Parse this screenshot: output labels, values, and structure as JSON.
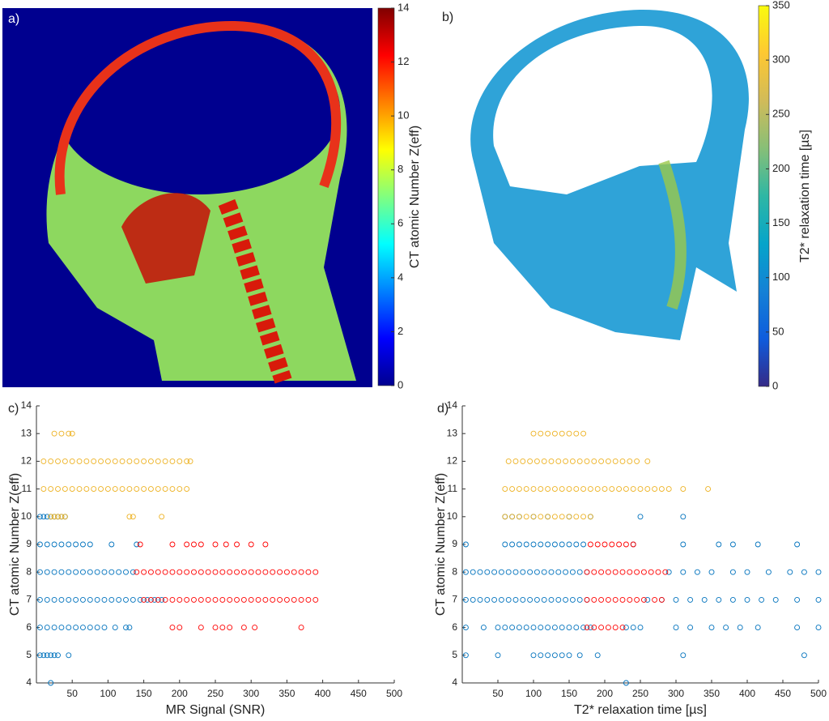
{
  "chart_data": [
    {
      "type": "image",
      "label": "a)",
      "colormap": "jet",
      "clim": [
        0,
        14
      ],
      "cticks": [
        0,
        2,
        4,
        6,
        8,
        10,
        12,
        14
      ],
      "clabel": "CT atomic Number Z(eff)"
    },
    {
      "type": "image",
      "label": "b)",
      "colormap": "parula",
      "clim": [
        0,
        350
      ],
      "cticks": [
        0,
        50,
        100,
        150,
        200,
        250,
        300,
        350
      ],
      "clabel": "T2* relaxation time [µs]"
    },
    {
      "type": "scatter",
      "label": "c)",
      "xlabel": "MR Signal (SNR)",
      "ylabel": "CT atomic Number Z(eff)",
      "xlim": [
        0,
        500
      ],
      "ylim": [
        4,
        14
      ],
      "xticks": [
        50,
        100,
        150,
        200,
        250,
        300,
        350,
        400,
        450,
        500
      ],
      "yticks": [
        4,
        5,
        6,
        7,
        8,
        9,
        10,
        11,
        12,
        13,
        14
      ],
      "series": [
        {
          "color": "#0072bd",
          "rows": [
            {
              "y": 4,
              "x": [
                20
              ]
            },
            {
              "y": 5,
              "x": [
                5,
                10,
                15,
                20,
                25,
                30,
                45
              ]
            },
            {
              "y": 6,
              "x": [
                5,
                15,
                25,
                35,
                45,
                55,
                65,
                75,
                85,
                95,
                110,
                125,
                130
              ]
            },
            {
              "y": 7,
              "x": [
                5,
                15,
                25,
                35,
                45,
                55,
                65,
                75,
                85,
                95,
                105,
                115,
                125,
                135,
                145,
                155,
                165,
                175
              ]
            },
            {
              "y": 8,
              "x": [
                5,
                15,
                25,
                35,
                45,
                55,
                65,
                75,
                85,
                95,
                105,
                115,
                125,
                135
              ]
            },
            {
              "y": 9,
              "x": [
                5,
                15,
                25,
                35,
                45,
                55,
                65,
                75,
                105,
                140
              ]
            },
            {
              "y": 10,
              "x": [
                5,
                10,
                15,
                20,
                25,
                30,
                35,
                40
              ]
            }
          ]
        },
        {
          "color": "#ff0000",
          "rows": [
            {
              "y": 6,
              "x": [
                190,
                200,
                230,
                250,
                260,
                270,
                290,
                305,
                370
              ]
            },
            {
              "y": 7,
              "x": [
                150,
                160,
                170,
                180,
                190,
                200,
                210,
                220,
                230,
                240,
                250,
                260,
                270,
                280,
                290,
                300,
                310,
                320,
                330,
                340,
                350,
                360,
                370,
                380,
                390
              ]
            },
            {
              "y": 8,
              "x": [
                140,
                150,
                160,
                170,
                180,
                190,
                200,
                210,
                220,
                230,
                240,
                250,
                260,
                270,
                280,
                290,
                300,
                310,
                320,
                330,
                340,
                350,
                360,
                370,
                380,
                390
              ]
            },
            {
              "y": 9,
              "x": [
                145,
                190,
                210,
                220,
                230,
                250,
                265,
                280,
                300,
                320
              ]
            }
          ]
        },
        {
          "color": "#edb120",
          "rows": [
            {
              "y": 10,
              "x": [
                20,
                25,
                30,
                35,
                40,
                130,
                135,
                175
              ]
            },
            {
              "y": 11,
              "x": [
                10,
                20,
                30,
                40,
                50,
                60,
                70,
                80,
                90,
                100,
                110,
                120,
                130,
                140,
                150,
                160,
                170,
                180,
                190,
                200,
                210
              ]
            },
            {
              "y": 12,
              "x": [
                10,
                20,
                30,
                40,
                50,
                60,
                70,
                80,
                90,
                100,
                110,
                120,
                130,
                140,
                150,
                160,
                170,
                180,
                190,
                200,
                210,
                215
              ]
            },
            {
              "y": 13,
              "x": [
                25,
                35,
                45,
                50
              ]
            }
          ]
        }
      ]
    },
    {
      "type": "scatter",
      "label": "d)",
      "xlabel": "T2* relaxation time [µs]",
      "ylabel": "CT atomic Number Z(eff)",
      "xlim": [
        0,
        500
      ],
      "ylim": [
        4,
        14
      ],
      "xticks": [
        50,
        100,
        150,
        200,
        250,
        300,
        350,
        400,
        450,
        500
      ],
      "yticks": [
        4,
        5,
        6,
        7,
        8,
        9,
        10,
        11,
        12,
        13,
        14
      ],
      "series": [
        {
          "color": "#0072bd",
          "rows": [
            {
              "y": 4,
              "x": [
                230
              ]
            },
            {
              "y": 5,
              "x": [
                5,
                50,
                100,
                110,
                120,
                130,
                140,
                150,
                165,
                190,
                310,
                480
              ]
            },
            {
              "y": 6,
              "x": [
                5,
                30,
                50,
                60,
                70,
                80,
                90,
                100,
                110,
                120,
                130,
                140,
                150,
                160,
                170,
                180,
                230,
                240,
                250,
                300,
                320,
                350,
                370,
                390,
                415,
                470,
                500
              ]
            },
            {
              "y": 7,
              "x": [
                5,
                15,
                25,
                35,
                45,
                55,
                65,
                75,
                85,
                95,
                105,
                115,
                125,
                135,
                145,
                155,
                165,
                175,
                260,
                280,
                300,
                320,
                340,
                360,
                380,
                400,
                420,
                440,
                470,
                500
              ]
            },
            {
              "y": 8,
              "x": [
                5,
                15,
                25,
                35,
                45,
                55,
                65,
                75,
                85,
                95,
                105,
                115,
                125,
                135,
                145,
                155,
                165,
                175,
                290,
                310,
                330,
                350,
                380,
                400,
                430,
                460,
                480,
                500
              ]
            },
            {
              "y": 9,
              "x": [
                5,
                60,
                70,
                80,
                90,
                100,
                110,
                120,
                130,
                140,
                150,
                160,
                170,
                240,
                310,
                360,
                380,
                415,
                470
              ]
            },
            {
              "y": 10,
              "x": [
                60,
                70,
                80,
                100,
                120,
                150,
                180,
                250,
                310
              ]
            }
          ]
        },
        {
          "color": "#ff0000",
          "rows": [
            {
              "y": 6,
              "x": [
                175,
                185,
                195,
                205,
                215,
                225
              ]
            },
            {
              "y": 7,
              "x": [
                175,
                185,
                195,
                205,
                215,
                225,
                235,
                245,
                255,
                270,
                280
              ]
            },
            {
              "y": 8,
              "x": [
                175,
                185,
                195,
                205,
                215,
                225,
                235,
                245,
                255,
                265,
                275,
                285
              ]
            },
            {
              "y": 9,
              "x": [
                180,
                190,
                200,
                210,
                220,
                230,
                240
              ]
            }
          ]
        },
        {
          "color": "#edb120",
          "rows": [
            {
              "y": 10,
              "x": [
                60,
                70,
                80,
                90,
                100,
                110,
                120,
                130,
                140,
                150,
                160,
                170,
                180
              ]
            },
            {
              "y": 11,
              "x": [
                60,
                70,
                80,
                90,
                100,
                110,
                120,
                130,
                140,
                150,
                160,
                170,
                180,
                190,
                200,
                210,
                220,
                230,
                240,
                250,
                260,
                270,
                280,
                290,
                310,
                345
              ]
            },
            {
              "y": 12,
              "x": [
                65,
                75,
                85,
                95,
                105,
                115,
                125,
                135,
                145,
                155,
                165,
                175,
                185,
                195,
                205,
                215,
                225,
                235,
                245,
                260
              ]
            },
            {
              "y": 13,
              "x": [
                100,
                110,
                120,
                130,
                140,
                150,
                160,
                170
              ]
            }
          ]
        }
      ]
    }
  ]
}
